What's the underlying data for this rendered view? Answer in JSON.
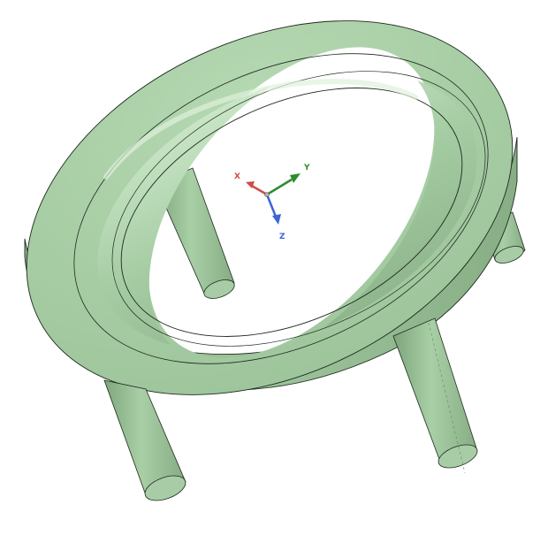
{
  "model": {
    "part": "ring-with-four-legs",
    "colors": {
      "face": "#a3c9a1",
      "face_light": "#c9e3c6",
      "face_dark": "#84ab82",
      "side": "#96bd94",
      "side_dark": "#7ba179",
      "edge": "#1e2a1e",
      "background": "#ffffff"
    }
  },
  "triad": {
    "x_label": "X",
    "y_label": "Y",
    "z_label": "Z",
    "x_color": "#d24a4a",
    "y_color": "#2e8b2e",
    "z_color": "#3f64d8"
  }
}
